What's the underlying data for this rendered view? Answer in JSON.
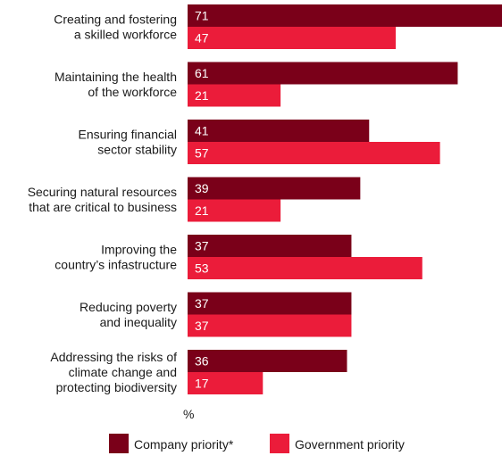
{
  "chart_data": {
    "type": "bar",
    "orientation": "horizontal",
    "categories": [
      [
        "Creating and fostering",
        "a skilled workforce"
      ],
      [
        "Maintaining the health",
        "of the workforce"
      ],
      [
        "Ensuring financial",
        "sector stability"
      ],
      [
        "Securing natural resources",
        "that are critical to business"
      ],
      [
        "Improving the",
        "country’s infastructure"
      ],
      [
        "Reducing poverty",
        "and inequality"
      ],
      [
        "Addressing the risks of",
        "climate change and",
        "protecting biodiversity"
      ]
    ],
    "series": [
      {
        "name": "Company priority*",
        "color": "#7a0019",
        "values": [
          71,
          61,
          41,
          39,
          37,
          37,
          36
        ]
      },
      {
        "name": "Government priority",
        "color": "#eb1c3a",
        "values": [
          47,
          21,
          57,
          21,
          53,
          37,
          17
        ]
      }
    ],
    "unit": "%",
    "xlim": [
      0,
      71
    ],
    "grid": false,
    "legend_position": "bottom"
  }
}
